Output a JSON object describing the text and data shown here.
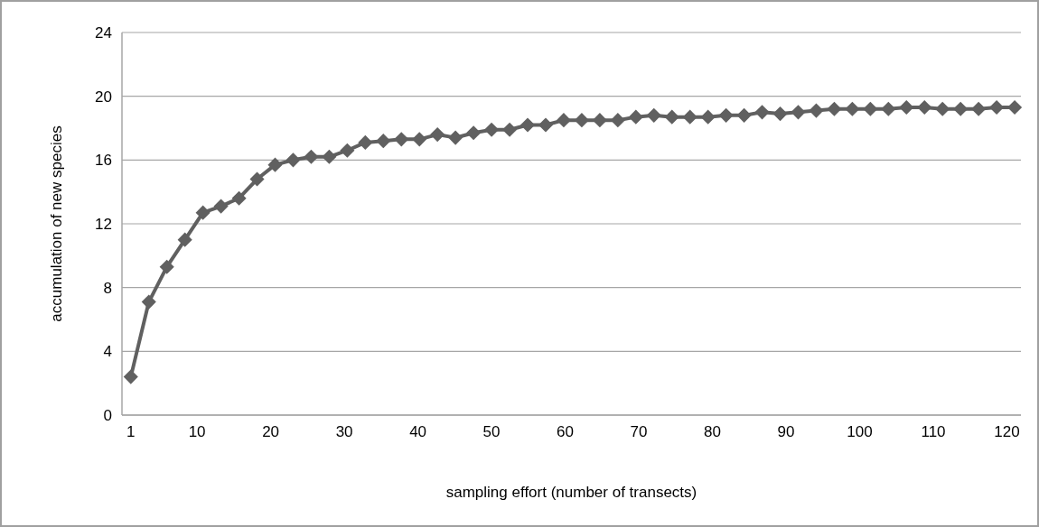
{
  "chart_data": {
    "type": "line",
    "xlabel": "sampling effort (number of transects)",
    "ylabel": "accumulation of new species",
    "x": [
      1,
      3.45,
      5.9,
      8.35,
      10.8,
      13.25,
      15.7,
      18.15,
      20.6,
      23.05,
      25.5,
      27.95,
      30.4,
      32.85,
      35.3,
      37.75,
      40.2,
      42.65,
      45.1,
      47.55,
      50,
      52.45,
      54.9,
      57.35,
      59.8,
      62.25,
      64.7,
      67.15,
      69.6,
      72.05,
      74.5,
      76.95,
      79.4,
      81.85,
      84.3,
      86.75,
      89.2,
      91.65,
      94.1,
      96.55,
      99,
      101.45,
      103.9,
      106.35,
      108.8,
      111.25,
      113.7,
      116.15,
      118.6,
      121.05
    ],
    "series": [
      {
        "color": "#606060",
        "values": [
          2.4,
          7.1,
          9.3,
          11.0,
          12.7,
          13.1,
          13.6,
          14.8,
          15.7,
          16.0,
          16.2,
          16.2,
          16.6,
          17.1,
          17.2,
          17.3,
          17.3,
          17.6,
          17.4,
          17.7,
          17.9,
          17.9,
          18.2,
          18.2,
          18.5,
          18.5,
          18.5,
          18.5,
          18.7,
          18.8,
          18.7,
          18.7,
          18.7,
          18.8,
          18.8,
          19.0,
          18.9,
          19.0,
          19.1,
          19.2,
          19.2,
          19.2,
          19.2,
          19.3,
          19.3,
          19.2,
          19.2,
          19.2,
          19.3,
          19.3
        ]
      }
    ],
    "xlim": [
      -0.2,
      121.9
    ],
    "xticks": [
      1,
      10,
      20,
      30,
      40,
      50,
      60,
      70,
      80,
      90,
      100,
      110,
      120
    ],
    "ylim": [
      0,
      24
    ],
    "yticks": [
      0,
      4,
      8,
      12,
      16,
      20,
      24
    ],
    "grid": "y",
    "marker": "diamond",
    "line_style": "solid"
  }
}
